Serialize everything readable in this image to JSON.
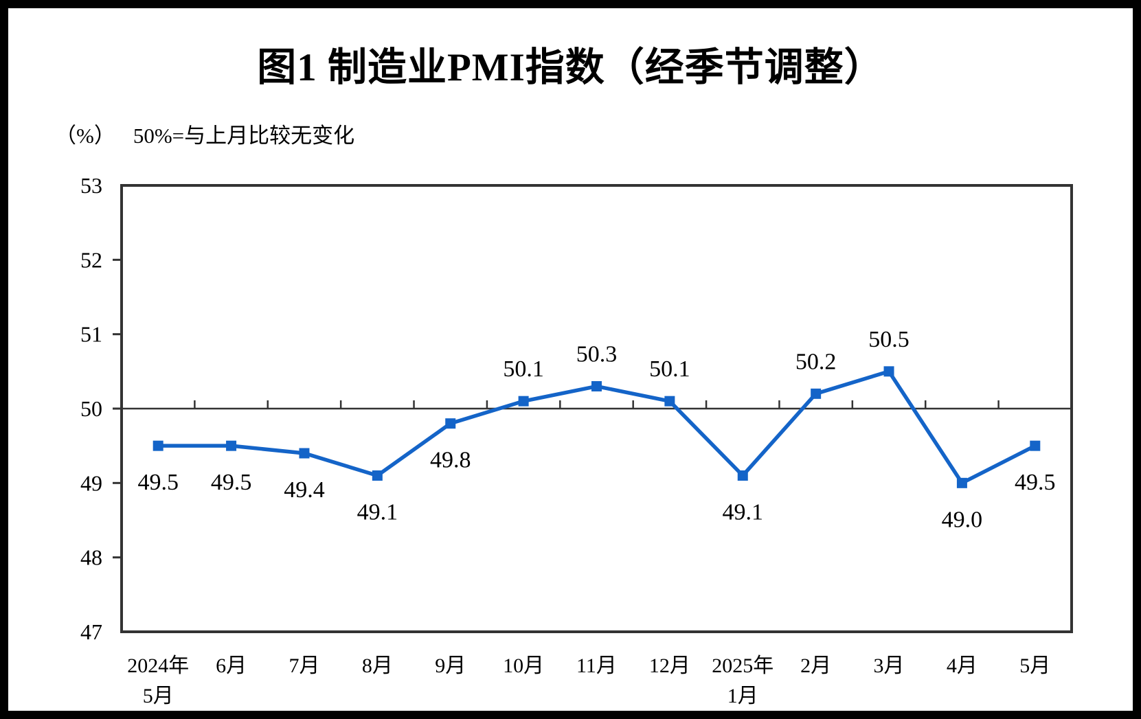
{
  "page": {
    "title": "图1 制造业PMI指数（经季节调整）"
  },
  "chart_data": {
    "type": "line",
    "title": "图1 制造业PMI指数（经季节调整）",
    "unit": "（%）",
    "note": "50%=与上月比较无变化",
    "categories": [
      [
        "2024年",
        "5月"
      ],
      [
        "6月"
      ],
      [
        "7月"
      ],
      [
        "8月"
      ],
      [
        "9月"
      ],
      [
        "10月"
      ],
      [
        "11月"
      ],
      [
        "12月"
      ],
      [
        "2025年",
        "1月"
      ],
      [
        "2月"
      ],
      [
        "3月"
      ],
      [
        "4月"
      ],
      [
        "5月"
      ]
    ],
    "series": [
      {
        "name": "制造业PMI",
        "values": [
          49.5,
          49.5,
          49.4,
          49.1,
          49.8,
          50.1,
          50.3,
          50.1,
          49.1,
          50.2,
          50.5,
          49.0,
          49.5
        ]
      }
    ],
    "point_labels": [
      "49.5",
      "49.5",
      "49.4",
      "49.1",
      "49.8",
      "50.1",
      "50.3",
      "50.1",
      "49.1",
      "50.2",
      "50.5",
      "49.0",
      "49.5"
    ],
    "ylim": [
      47,
      53
    ],
    "yticks": [
      53,
      52,
      51,
      50,
      49,
      48,
      47
    ],
    "reference_line": 50,
    "grid": false,
    "legend": "none",
    "colors": {
      "line": "#1464C8",
      "marker": "#1464C8",
      "axis": "#333333",
      "text": "#000000"
    }
  }
}
